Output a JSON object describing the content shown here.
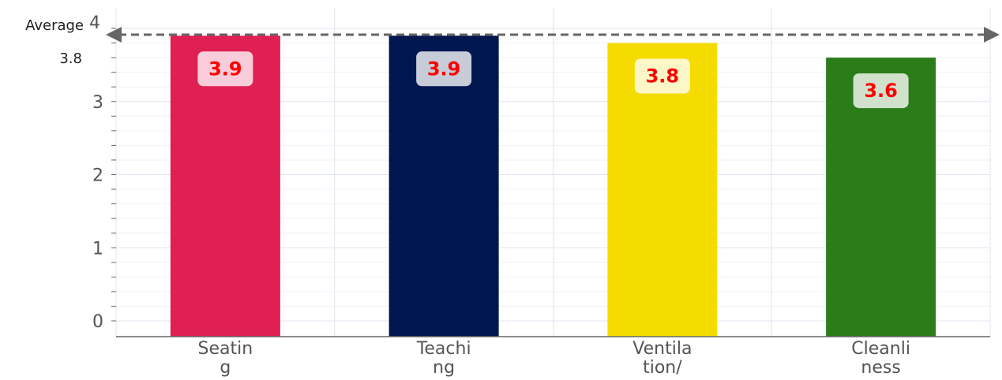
{
  "chart_data": {
    "type": "bar",
    "categories": [
      [
        "Seatin",
        "g"
      ],
      [
        "Teachi",
        "ng"
      ],
      [
        "Ventila",
        "tion/"
      ],
      [
        "Cleanli",
        "ness"
      ]
    ],
    "values": [
      3.9,
      3.9,
      3.8,
      3.6
    ],
    "value_labels": [
      "3.9",
      "3.9",
      "3.8",
      "3.6"
    ],
    "colors": [
      "#e01f52",
      "#00174f",
      "#f5dc00",
      "#2b7d19"
    ],
    "ylim": [
      0,
      4
    ],
    "yticks": [
      "0",
      "1",
      "2",
      "3",
      "4"
    ],
    "average": {
      "label": "Average",
      "value_label": "3.8",
      "value": 3.8
    },
    "grid": true,
    "title": "",
    "xlabel": "",
    "ylabel": ""
  }
}
